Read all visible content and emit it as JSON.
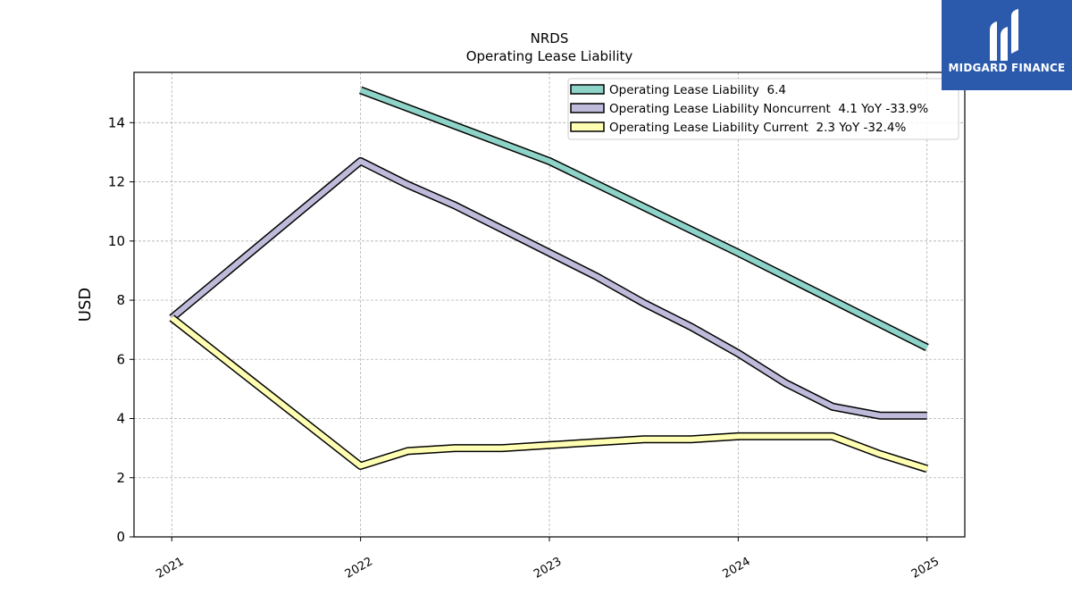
{
  "chart_data": {
    "type": "line",
    "title": "NRDS",
    "subtitle": "Operating Lease Liability",
    "ylabel": "USD",
    "xlabel": "",
    "ylim": [
      0,
      15.7
    ],
    "xlim": [
      2020.8,
      2025.2
    ],
    "yticks": [
      0,
      2,
      4,
      6,
      8,
      10,
      12,
      14
    ],
    "xticks": [
      2021,
      2022,
      2023,
      2024,
      2025
    ],
    "xtick_labels": [
      "2021",
      "2022",
      "2023",
      "2024",
      "2025"
    ],
    "grid": true,
    "legend_position": "top-right",
    "series": [
      {
        "name": "Operating Lease Liability  6.4",
        "color": "#8dd3c7",
        "x": [
          2022.0,
          2023.0,
          2024.0,
          2025.0
        ],
        "y": [
          15.1,
          12.7,
          9.6,
          6.4
        ]
      },
      {
        "name": "Operating Lease Liability Noncurrent  4.1 YoY -33.9%",
        "color": "#bebada",
        "x": [
          2021.0,
          2022.0,
          2022.25,
          2022.5,
          2022.75,
          2023.0,
          2023.25,
          2023.5,
          2023.75,
          2024.0,
          2024.25,
          2024.5,
          2024.75,
          2025.0
        ],
        "y": [
          7.4,
          12.7,
          11.9,
          11.2,
          10.4,
          9.6,
          8.8,
          7.9,
          7.1,
          6.2,
          5.2,
          4.4,
          4.1,
          4.1
        ]
      },
      {
        "name": "Operating Lease Liability Current  2.3 YoY -32.4%",
        "color": "#ffffb3",
        "x": [
          2021.0,
          2022.0,
          2022.25,
          2022.5,
          2022.75,
          2023.0,
          2023.25,
          2023.5,
          2023.75,
          2024.0,
          2024.25,
          2024.5,
          2024.75,
          2025.0
        ],
        "y": [
          7.4,
          2.4,
          2.9,
          3.0,
          3.0,
          3.1,
          3.2,
          3.3,
          3.3,
          3.4,
          3.4,
          3.4,
          2.8,
          2.3
        ]
      }
    ]
  },
  "brand": {
    "name": "MIDGARD FINANCE",
    "color": "#2b5aad"
  }
}
